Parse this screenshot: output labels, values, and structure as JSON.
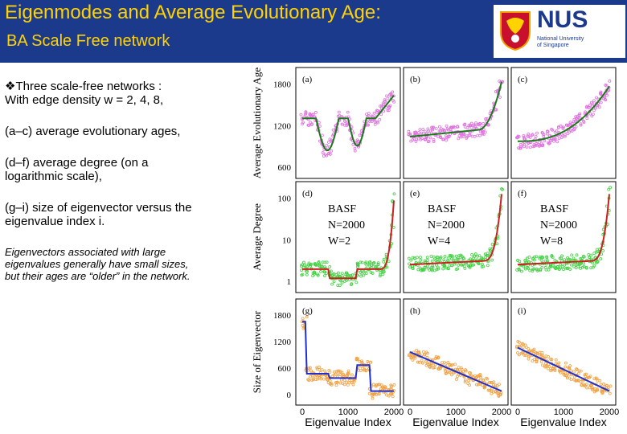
{
  "header": {
    "title": "Eigenmodes and  Average Evolutionary Age:",
    "subtitle": "BA Scale Free  network",
    "logo_text": "NUS",
    "logo_sub1": "National University",
    "logo_sub2": "of Singapore"
  },
  "bullets": {
    "b1_line1": "Three scale-free networks :",
    "b1_line2": "With edge density w = 2, 4, 8,",
    "b2": "(a–c) average  evolutionary ages,",
    "b3_line1": "(d–f) average degree (on a",
    "b3_line2": "logarithmic scale),",
    "b4_line1": "(g–i) size of eigenvector versus the",
    "b4_line2": "eigenvalue index i.",
    "note_line1": "Eigenvectors associated with large",
    "note_line2": "eigenvalues generally have small sizes,",
    "note_line3": "but their ages are “older” in the network."
  },
  "figure": {
    "row_labels": [
      "Average Evolutionary Age",
      "Average Degree",
      "Size of Eigenvector"
    ],
    "x_label": "Eigenvalue Index",
    "x_ticks": [
      "0",
      "1000",
      "2000"
    ],
    "y_ticks_age": [
      "1800",
      "1200",
      "600"
    ],
    "y_ticks_deg": [
      "100",
      "10",
      "1"
    ],
    "y_ticks_eig": [
      "1800",
      "1200",
      "600",
      "0"
    ],
    "panel_letters": [
      "(a)",
      "(b)",
      "(c)",
      "(d)",
      "(e)",
      "(f)",
      "(g)",
      "(h)",
      "(i)"
    ],
    "basf_label": "BASF",
    "n_label": "N=2000",
    "w_labels": [
      "W=2",
      "W=4",
      "W=8"
    ],
    "colors": {
      "header_bg": "#1c3a8c",
      "title": "#ffd200",
      "age_scatter": "#e070e0",
      "age_line": "#1a7a1a",
      "deg_scatter": "#40d040",
      "deg_line": "#cc2020",
      "eig_scatter": "#f0a040",
      "eig_line": "#2030d0"
    }
  }
}
